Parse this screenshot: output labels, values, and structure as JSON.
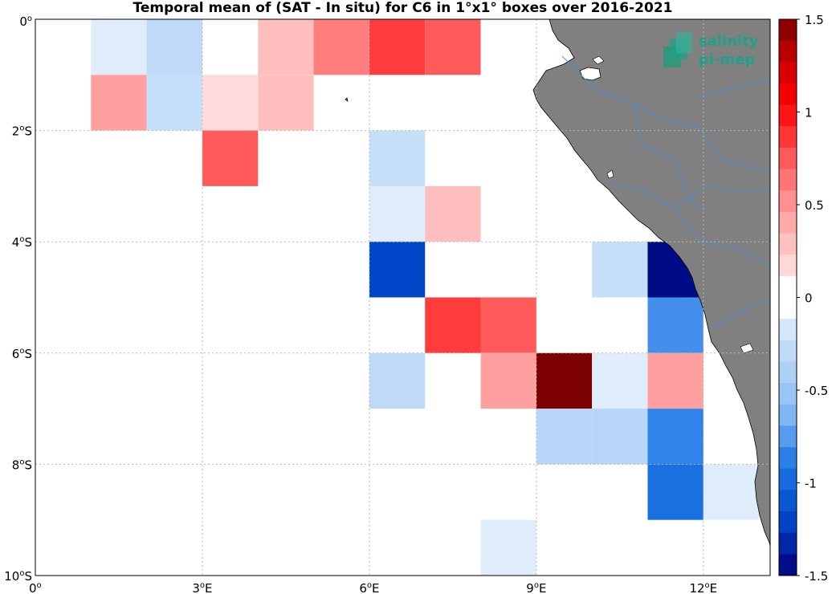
{
  "title": "Temporal mean of (SAT - In situ) for C6 in 1°x1° boxes over 2016-2021",
  "logo": {
    "line1": "salinity",
    "line2": "pi-mep",
    "icon": "salinity-pimep-logo-icon"
  },
  "colors": {
    "land": "#808080",
    "river": "#4a90d9",
    "grid": "#b8b8b8"
  },
  "map": {
    "lon_range": [
      0,
      13.2
    ],
    "lat_range": [
      -10,
      0
    ],
    "lon_ticks": [
      {
        "value": 0,
        "label": "0",
        "suffix": ""
      },
      {
        "value": 3,
        "label": "3",
        "suffix": "E"
      },
      {
        "value": 6,
        "label": "6",
        "suffix": "E"
      },
      {
        "value": 9,
        "label": "9",
        "suffix": "E"
      },
      {
        "value": 12,
        "label": "12",
        "suffix": "E"
      }
    ],
    "lat_ticks": [
      {
        "value": 0,
        "label": "0",
        "suffix": ""
      },
      {
        "value": -2,
        "label": "2",
        "suffix": "S"
      },
      {
        "value": -4,
        "label": "4",
        "suffix": "S"
      },
      {
        "value": -6,
        "label": "6",
        "suffix": "S"
      },
      {
        "value": -8,
        "label": "8",
        "suffix": "S"
      },
      {
        "value": -10,
        "label": "10",
        "suffix": "S"
      }
    ]
  },
  "colorbar": {
    "range": [
      -1.5,
      1.5
    ],
    "levels": 26,
    "ticks": [
      {
        "value": 1.5,
        "label": "1.5"
      },
      {
        "value": 1,
        "label": "1"
      },
      {
        "value": 0.5,
        "label": "0.5"
      },
      {
        "value": 0,
        "label": "0"
      },
      {
        "value": -0.5,
        "label": "-0.5"
      },
      {
        "value": -1,
        "label": "-1"
      },
      {
        "value": -1.5,
        "label": "-1.5"
      }
    ]
  },
  "chart_data": {
    "type": "heatmap",
    "cell_size_deg": 1,
    "cells": [
      {
        "lon": 1,
        "lat": -1,
        "value": -0.12
      },
      {
        "lon": 2,
        "lat": -1,
        "value": -0.3
      },
      {
        "lon": 3,
        "lat": -1,
        "value": 0.0
      },
      {
        "lon": 4,
        "lat": -1,
        "value": 0.3
      },
      {
        "lon": 5,
        "lat": -1,
        "value": 0.6
      },
      {
        "lon": 6,
        "lat": -1,
        "value": 0.85
      },
      {
        "lon": 7,
        "lat": -1,
        "value": 0.75
      },
      {
        "lon": 1,
        "lat": -2,
        "value": 0.45
      },
      {
        "lon": 2,
        "lat": -2,
        "value": -0.25
      },
      {
        "lon": 3,
        "lat": -2,
        "value": 0.15
      },
      {
        "lon": 4,
        "lat": -2,
        "value": 0.3
      },
      {
        "lon": 3,
        "lat": -3,
        "value": 0.75
      },
      {
        "lon": 6,
        "lat": -3,
        "value": -0.25
      },
      {
        "lon": 6,
        "lat": -4,
        "value": -0.12
      },
      {
        "lon": 7,
        "lat": -4,
        "value": 0.3
      },
      {
        "lon": 6,
        "lat": -5,
        "value": -1.2
      },
      {
        "lon": 10,
        "lat": -5,
        "value": -0.25
      },
      {
        "lon": 11,
        "lat": -5,
        "value": -1.45
      },
      {
        "lon": 7,
        "lat": -6,
        "value": 0.85
      },
      {
        "lon": 8,
        "lat": -6,
        "value": 0.75
      },
      {
        "lon": 11,
        "lat": -6,
        "value": -0.8
      },
      {
        "lon": 6,
        "lat": -7,
        "value": -0.3
      },
      {
        "lon": 8,
        "lat": -7,
        "value": 0.45
      },
      {
        "lon": 9,
        "lat": -7,
        "value": 1.5
      },
      {
        "lon": 10,
        "lat": -7,
        "value": -0.12
      },
      {
        "lon": 11,
        "lat": -7,
        "value": 0.45
      },
      {
        "lon": 9,
        "lat": -8,
        "value": -0.35
      },
      {
        "lon": 10,
        "lat": -8,
        "value": -0.35
      },
      {
        "lon": 11,
        "lat": -8,
        "value": -0.85
      },
      {
        "lon": 11,
        "lat": -9,
        "value": -0.95
      },
      {
        "lon": 12,
        "lat": -9,
        "value": -0.12
      },
      {
        "lon": 8,
        "lat": -10,
        "value": -0.12
      }
    ]
  }
}
